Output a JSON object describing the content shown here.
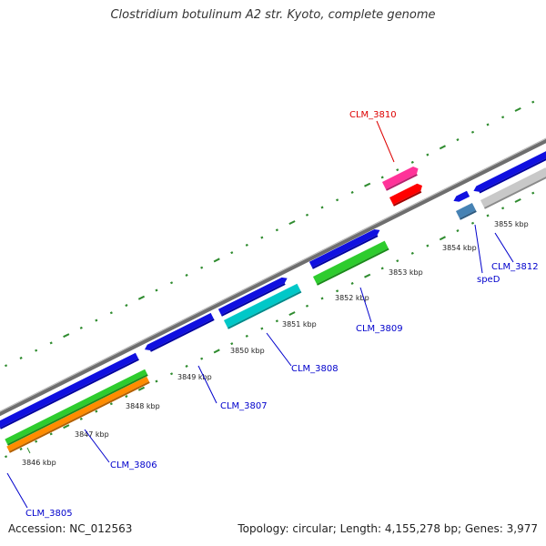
{
  "title": "Clostridium botulinum A2 str. Kyoto, complete genome",
  "footer": {
    "accession": "Accession: NC_012563",
    "summary": "Topology: circular; Length: 4,155,278 bp; Genes: 3,977"
  },
  "colors": {
    "backbone": "#8c8c8c",
    "tick": "#2e8b2e",
    "gene_blue": "#1010e0",
    "gene_green": "#2ecc2e",
    "gene_orange": "#ff8c00",
    "gene_cyan": "#00c8c8",
    "gene_pink": "#ff3399",
    "gene_red": "#ff0000",
    "gene_steelblue": "#4682b4",
    "gene_gray": "#c8c8c8",
    "label_blue": "#0000cc",
    "label_red": "#dd0000"
  },
  "scale_labels": [
    "3846 kbp",
    "3847 kbp",
    "3848 kbp",
    "3849 kbp",
    "3850 kbp",
    "3851 kbp",
    "3852 kbp",
    "3853 kbp",
    "3854 kbp",
    "3855 kbp"
  ],
  "gene_labels": {
    "clm3805": "CLM_3805",
    "clm3806": "CLM_3806",
    "clm3807": "CLM_3807",
    "clm3808": "CLM_3808",
    "clm3809": "CLM_3809",
    "clm3810": "CLM_3810",
    "sped": "speD",
    "clm3812": "CLM_3812"
  }
}
